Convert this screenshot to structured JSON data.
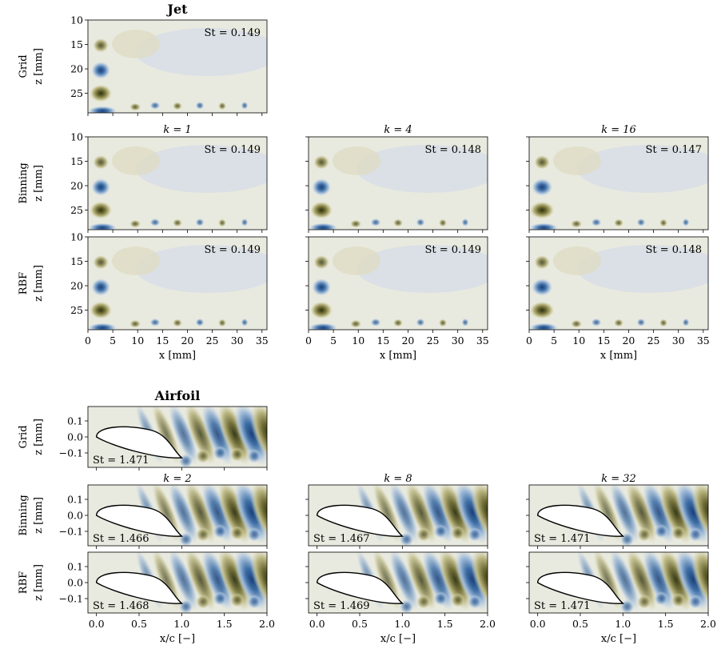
{
  "chart_data": [
    {
      "type": "heatmap",
      "title": "Jet",
      "xlabel": "x [mm]",
      "ylabel": "z [mm]",
      "xlim": [
        0,
        36
      ],
      "ylim": [
        10,
        29
      ],
      "xticks": [
        "0",
        "5",
        "10",
        "15",
        "20",
        "25",
        "30",
        "35"
      ],
      "yticks": [
        "10",
        "15",
        "20",
        "25"
      ],
      "rows": [
        "Grid",
        "Binning",
        "RBF"
      ],
      "columns": [
        {
          "k_label": "k = 1"
        },
        {
          "k_label": "k = 4"
        },
        {
          "k_label": "k = 16"
        }
      ],
      "panels": [
        {
          "method": "Grid",
          "st_label": "St = 0.149",
          "St": 0.149
        },
        {
          "method": "Binning",
          "k": 1,
          "st_label": "St = 0.149",
          "St": 0.149
        },
        {
          "method": "Binning",
          "k": 4,
          "st_label": "St = 0.148",
          "St": 0.148
        },
        {
          "method": "Binning",
          "k": 16,
          "st_label": "St = 0.147",
          "St": 0.147
        },
        {
          "method": "RBF",
          "k": 1,
          "st_label": "St = 0.149",
          "St": 0.149
        },
        {
          "method": "RBF",
          "k": 4,
          "st_label": "St = 0.149",
          "St": 0.149
        },
        {
          "method": "RBF",
          "k": 16,
          "st_label": "St = 0.148",
          "St": 0.148
        }
      ]
    },
    {
      "type": "heatmap",
      "title": "Airfoil",
      "xlabel": "x/c [−]",
      "ylabel": "z [mm]",
      "xlim": [
        -0.1,
        2.0
      ],
      "ylim": [
        -0.19,
        0.19
      ],
      "xticks": [
        "0.0",
        "0.5",
        "1.0",
        "1.5",
        "2.0"
      ],
      "yticks": [
        "0.1",
        "0.0",
        "−0.1"
      ],
      "rows": [
        "Grid",
        "Binning",
        "RBF"
      ],
      "columns": [
        {
          "k_label": "k = 2"
        },
        {
          "k_label": "k = 8"
        },
        {
          "k_label": "k = 32"
        }
      ],
      "panels": [
        {
          "method": "Grid",
          "st_label": "St = 1.471",
          "St": 1.471
        },
        {
          "method": "Binning",
          "k": 2,
          "st_label": "St = 1.466",
          "St": 1.466
        },
        {
          "method": "Binning",
          "k": 8,
          "st_label": "St = 1.467",
          "St": 1.467
        },
        {
          "method": "Binning",
          "k": 32,
          "st_label": "St = 1.471",
          "St": 1.471
        },
        {
          "method": "RBF",
          "k": 2,
          "st_label": "St = 1.468",
          "St": 1.468
        },
        {
          "method": "RBF",
          "k": 8,
          "st_label": "St = 1.469",
          "St": 1.469
        },
        {
          "method": "RBF",
          "k": 32,
          "st_label": "St = 1.471",
          "St": 1.471
        }
      ]
    }
  ],
  "colors": {
    "positive_dark": "#2e3210",
    "positive_mid": "#8f8a48",
    "positive_light": "#d9d6b0",
    "neutral": "#e9eadf",
    "negative_light": "#cfd9e6",
    "negative_mid": "#5e8fbf",
    "negative_dark": "#1c3f79"
  }
}
